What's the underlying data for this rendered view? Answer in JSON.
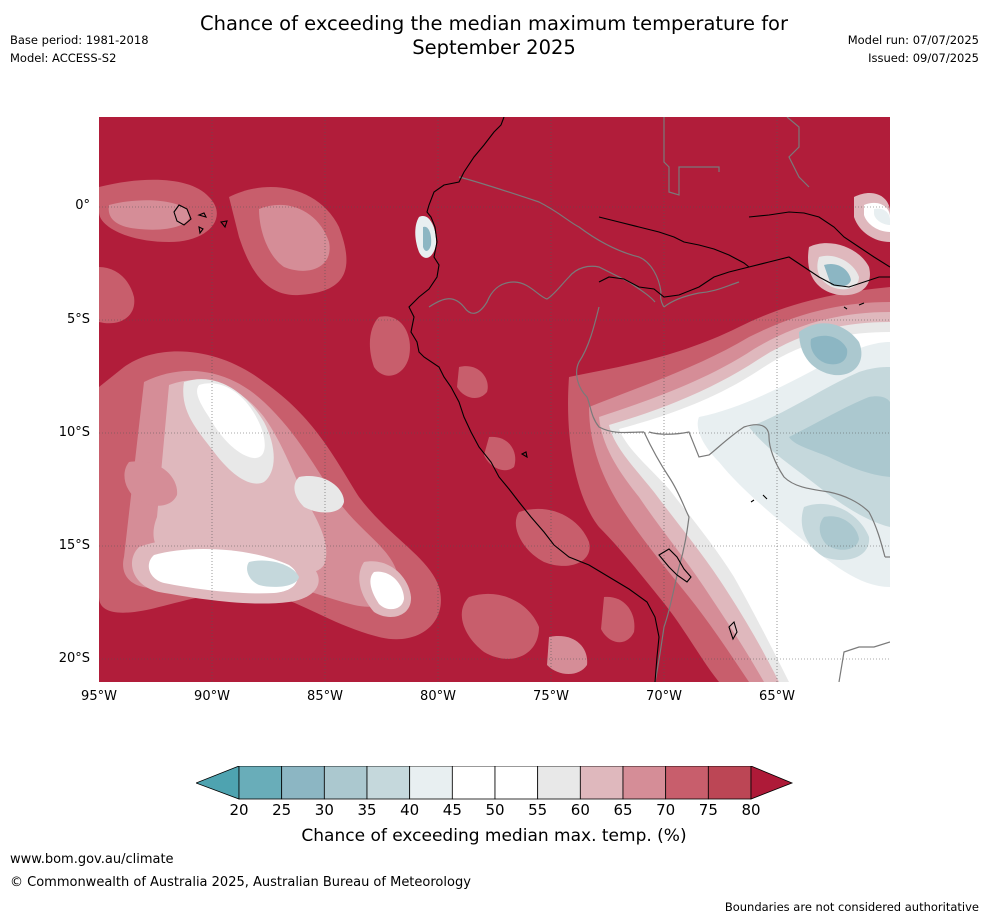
{
  "header": {
    "title_line1": "Chance of exceeding the median maximum temperature for",
    "title_line2": "September 2025",
    "base_period": "Base period: 1981-2018",
    "model": "Model: ACCESS-S2",
    "model_run": "Model run: 07/07/2025",
    "issued": "Issued: 09/07/2025"
  },
  "map": {
    "lat_labels": [
      "0°",
      "5°S",
      "10°S",
      "15°S",
      "20°S"
    ],
    "lon_labels": [
      "95°W",
      "90°W",
      "85°W",
      "80°W",
      "75°W",
      "70°W",
      "65°W"
    ],
    "colors": {
      "above_80": "#b11d3a",
      "ocean_base": "#b11d3a"
    }
  },
  "colorbar": {
    "ticks": [
      "20",
      "25",
      "30",
      "35",
      "40",
      "45",
      "50",
      "55",
      "60",
      "65",
      "70",
      "75",
      "80"
    ],
    "colors": [
      "#69adb9",
      "#8cb6c3",
      "#abc8cf",
      "#c5d8dc",
      "#e8eff1",
      "#ffffff",
      "#ffffff",
      "#e8e8e8",
      "#dfb8bd",
      "#d58d97",
      "#c85e6c",
      "#bc4655"
    ],
    "low_extend_color": "#4ea3b0",
    "high_extend_color": "#ae1a38",
    "label": "Chance of exceeding median max. temp. (%)"
  },
  "footer": {
    "url": "www.bom.gov.au/climate",
    "copyright": "© Commonwealth of Australia 2025, Australian Bureau of Meteorology",
    "disclaimer": "Boundaries are not considered authoritative"
  }
}
